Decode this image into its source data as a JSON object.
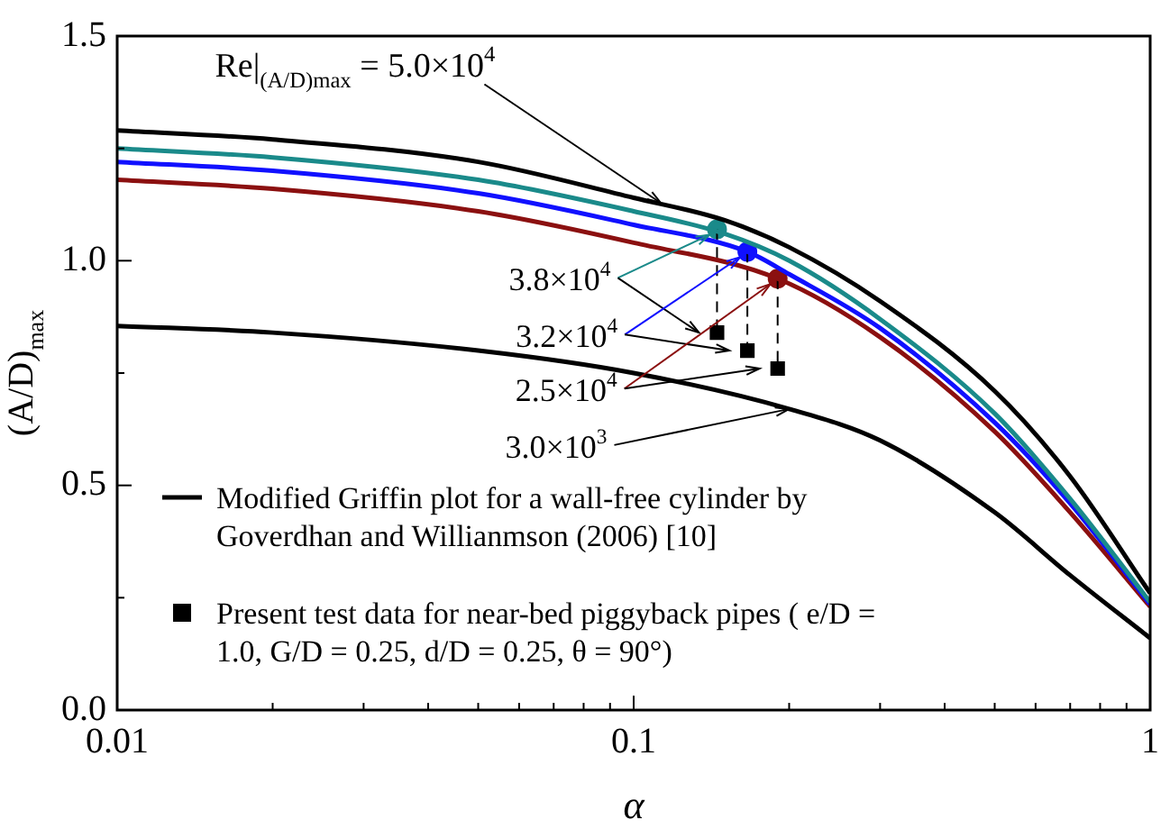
{
  "chart_data": {
    "type": "line",
    "xlabel": "α",
    "ylabel": "(A/D)$_{max}$",
    "log": "x",
    "xlim": [
      0.01,
      1
    ],
    "ylim": [
      0,
      1.5
    ],
    "xticks": [
      0.01,
      {
        "value": 0.02,
        "label": null
      },
      {
        "value": 0.03,
        "label": null
      },
      {
        "value": 0.04,
        "label": null
      },
      {
        "value": 0.05,
        "label": null
      },
      {
        "value": 0.06,
        "label": null
      },
      {
        "value": 0.07,
        "label": null
      },
      {
        "value": 0.08,
        "label": null
      },
      {
        "value": 0.09,
        "label": null
      },
      0.1,
      {
        "value": 0.2,
        "label": null
      },
      {
        "value": 0.3,
        "label": null
      },
      {
        "value": 0.4,
        "label": null
      },
      {
        "value": 0.5,
        "label": null
      },
      {
        "value": 0.6,
        "label": null
      },
      {
        "value": 0.7,
        "label": null
      },
      {
        "value": 0.8,
        "label": null
      },
      {
        "value": 0.9,
        "label": null
      },
      1
    ],
    "yticks": [
      {
        "value": 0,
        "label": "0.0"
      },
      {
        "value": 0.25,
        "label": null
      },
      {
        "value": 0.5,
        "label": "0.5"
      },
      {
        "value": 0.75,
        "label": null
      },
      {
        "value": 1,
        "label": "1.0"
      },
      {
        "value": 1.25,
        "label": null
      },
      {
        "value": 1.5,
        "label": "1.5"
      }
    ],
    "grid": false,
    "legend": "bottom left",
    "series": [
      {
        "name": "Modified Griffin plot for a wall-free cylinder by Goverdhan and Willianmson (2006) [10]",
        "marker": "none",
        "color": "#000000",
        "x": [
          0.01,
          0.02,
          0.05,
          0.1,
          0.15,
          0.2,
          0.3,
          0.5,
          0.7,
          1
        ],
        "values": [
          1.29,
          1.27,
          1.22,
          1.14,
          1.09,
          1.03,
          0.91,
          0.71,
          0.52,
          0.26
        ]
      },
      {
        "marker": "none",
        "color": "#1a8a8a",
        "x": [
          0.01,
          0.02,
          0.05,
          0.1,
          0.15,
          0.2,
          0.3,
          0.5,
          0.7,
          1
        ],
        "values": [
          1.25,
          1.23,
          1.18,
          1.11,
          1.06,
          1.0,
          0.87,
          0.66,
          0.47,
          0.24
        ]
      },
      {
        "marker": "none",
        "color": "#1010ff",
        "x": [
          0.01,
          0.02,
          0.05,
          0.1,
          0.166,
          0.2,
          0.3,
          0.5,
          0.7,
          1
        ],
        "values": [
          1.22,
          1.2,
          1.15,
          1.08,
          1.02,
          0.97,
          0.85,
          0.64,
          0.46,
          0.235
        ]
      },
      {
        "marker": "none",
        "color": "#8b1010",
        "x": [
          0.01,
          0.02,
          0.05,
          0.1,
          0.19,
          0.3,
          0.5,
          0.7,
          1
        ],
        "values": [
          1.18,
          1.16,
          1.11,
          1.04,
          0.96,
          0.83,
          0.62,
          0.44,
          0.23
        ]
      },
      {
        "marker": "none",
        "color": "#000000",
        "x": [
          0.01,
          0.02,
          0.05,
          0.1,
          0.2,
          0.3,
          0.5,
          0.7,
          1
        ],
        "values": [
          0.855,
          0.84,
          0.8,
          0.75,
          0.67,
          0.6,
          0.44,
          0.3,
          0.16
        ]
      },
      {
        "marker": "none",
        "line_style": "dashed",
        "color": "#000000",
        "x": [
          0.145,
          0.145
        ],
        "values": [
          1.07,
          0.84
        ]
      },
      {
        "marker": "none",
        "line_style": "dashed",
        "color": "#000000",
        "x": [
          0.166,
          0.166
        ],
        "values": [
          1.02,
          0.8
        ]
      },
      {
        "marker": "none",
        "line_style": "dashed",
        "color": "#000000",
        "x": [
          0.19,
          0.19
        ],
        "values": [
          0.96,
          0.76
        ]
      },
      {
        "type": "scatter",
        "marker": "circle",
        "colors": [
          "#1a8a8a",
          "#1010ff",
          "#8b1010"
        ],
        "x": [
          0.145,
          0.166,
          0.19
        ],
        "values": [
          1.07,
          1.02,
          0.96
        ]
      },
      {
        "name": "Present test data for near-bed piggyback pipes ( e/D = 1.0, G/D = 0.25, d/D = 0.25, θ = 90°)",
        "type": "scatter",
        "marker": "square",
        "color": "#000000",
        "x": [
          0.145,
          0.166,
          0.19
        ],
        "values": [
          0.84,
          0.8,
          0.76
        ]
      }
    ],
    "annotations": [
      {
        "text": "Re|$_{(A/D)max}$ = 5.0×10$^{4}$",
        "x": 0.113,
        "y": 1.12
      },
      {
        "text": "3.8×10$^{4}$",
        "x": 0.145,
        "y": 1.07
      },
      {
        "text": "3.2×10$^{4}$",
        "x": 0.166,
        "y": 1.02
      },
      {
        "text": "2.5×10$^{4}$",
        "x": 0.19,
        "y": 0.96
      },
      {
        "text": "3.0×10$^{3}$",
        "x": 0.2,
        "y": 0.67
      }
    ]
  }
}
